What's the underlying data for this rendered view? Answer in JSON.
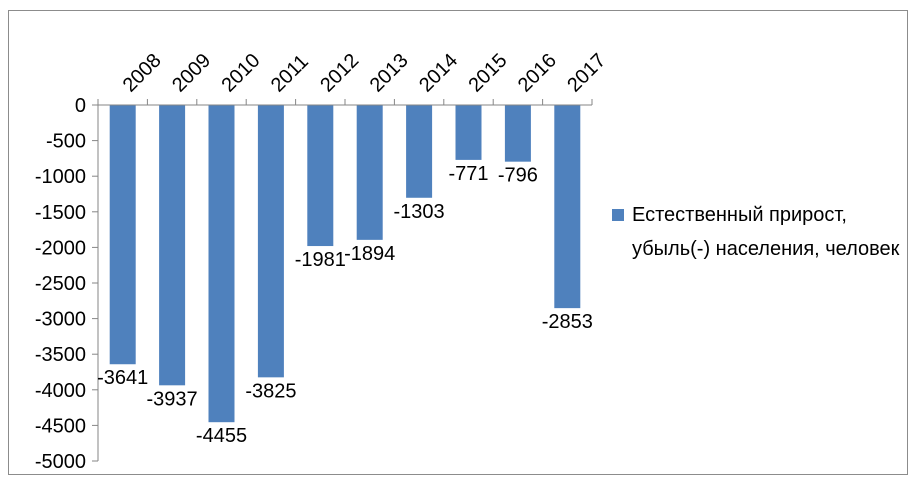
{
  "chart_data": {
    "type": "bar",
    "categories": [
      "2008",
      "2009",
      "2010",
      "2011",
      "2012",
      "2013",
      "2014",
      "2015",
      "2016",
      "2017"
    ],
    "series": [
      {
        "name": "Естественный прирост, убыль(-) населения, человек",
        "values": [
          -3641,
          -3937,
          -4455,
          -3825,
          -1981,
          -1894,
          -1303,
          -771,
          -796,
          -2853
        ],
        "data_labels": [
          "-3641",
          "-3937",
          "-4455",
          "-3825",
          "-1981",
          "-1894",
          "-1303",
          "-771",
          "-796",
          "-2853"
        ]
      }
    ],
    "ylim": [
      -5000,
      0
    ],
    "yticks": [
      0,
      -500,
      -1000,
      -1500,
      -2000,
      -2500,
      -3000,
      -3500,
      -4000,
      -4500,
      -5000
    ],
    "ytick_labels": [
      "0",
      "-500",
      "-1000",
      "-1500",
      "-2000",
      "-2500",
      "-3000",
      "-3500",
      "-4000",
      "-4500",
      "-5000"
    ],
    "title": "",
    "xlabel": "",
    "ylabel": "",
    "x_axis_position": "top",
    "x_label_rotation": "diagonal",
    "grid": false,
    "legend_position": "right",
    "colors": {
      "bar": "#4f81bd",
      "axis": "#868686",
      "frame": "#8c8c8c"
    }
  }
}
